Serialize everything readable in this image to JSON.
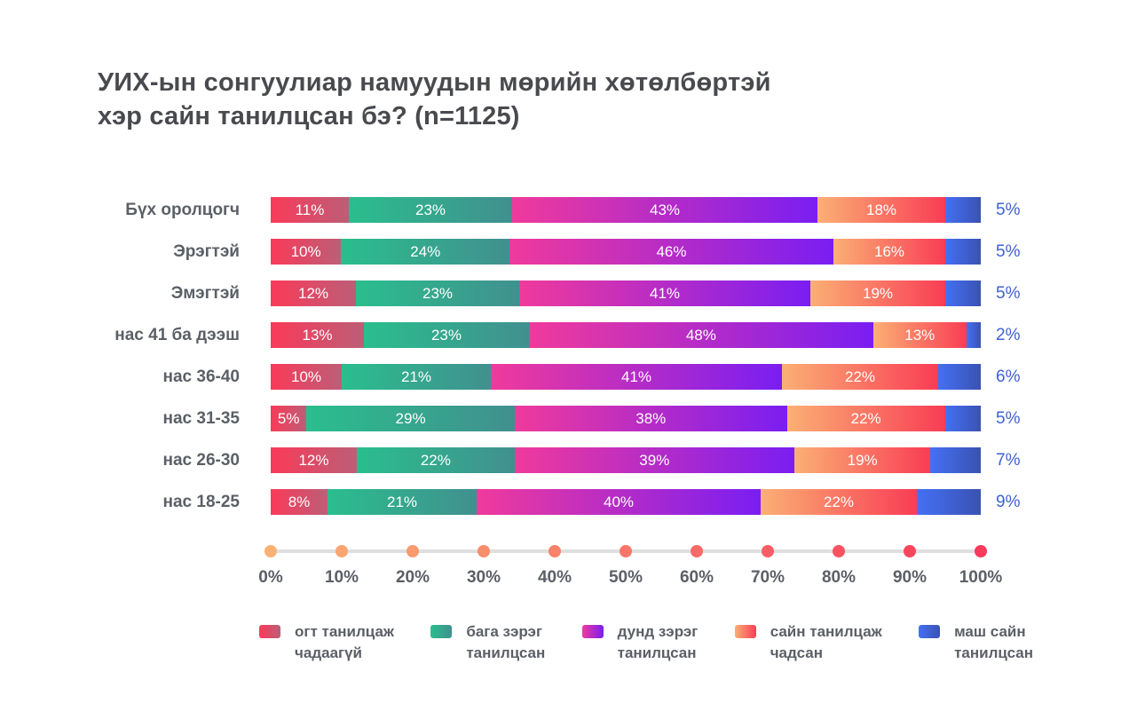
{
  "title": {
    "line1": "УИХ-ын сонгуулиар намуудын мөрийн хөтөлбөртэй",
    "line2": "хэр сайн танилцсан бэ? (n=1125)"
  },
  "colors": {
    "background": "#ffffff",
    "title_text": "#494a4e",
    "row_label_text": "#5b5f66",
    "segment_label_text": "#ffffff",
    "end_label_text": "#3e62d2",
    "axis_track": "#dfdfdf",
    "axis_label_text": "#5b5f66",
    "axis_dot_start": "#fbb173",
    "axis_dot_end": "#f93a5d"
  },
  "chart_data": {
    "type": "bar",
    "stacked": true,
    "orientation": "horizontal",
    "grid": false,
    "legend_position": "bottom",
    "xlim": [
      0,
      100
    ],
    "xticks": [
      "0%",
      "10%",
      "20%",
      "30%",
      "40%",
      "50%",
      "60%",
      "70%",
      "80%",
      "90%",
      "100%"
    ],
    "categories": [
      "Бүх оролцогч",
      "Эрэгтэй",
      "Эмэгтэй",
      "нас 41 ба дээш",
      "нас 36-40",
      "нас 31-35",
      "нас 26-30",
      "нас 18-25"
    ],
    "value_suffix": "%",
    "series": [
      {
        "name": "огт танилцаж чадаагүй",
        "label_lines": [
          "огт танилцаж",
          "чадаагүй"
        ],
        "gradient": [
          "#fa3a59",
          "#bc5e77"
        ],
        "values": [
          11,
          10,
          12,
          13,
          10,
          5,
          12,
          8
        ]
      },
      {
        "name": "бага зэрэг танилцсан",
        "label_lines": [
          "бага зэрэг",
          "танилцсан"
        ],
        "gradient": [
          "#2abe8d",
          "#41908f"
        ],
        "values": [
          23,
          24,
          23,
          23,
          21,
          29,
          22,
          21
        ]
      },
      {
        "name": "дунд зэрэг танилцсан",
        "label_lines": [
          "дунд зэрэг",
          "танилцсан"
        ],
        "gradient": [
          "#f03a9c",
          "#7a1ef2"
        ],
        "values": [
          43,
          46,
          41,
          48,
          41,
          38,
          39,
          40
        ]
      },
      {
        "name": "сайн танилцаж чадсан",
        "label_lines": [
          "сайн танилцаж",
          "чадсан"
        ],
        "gradient": [
          "#fbaf74",
          "#f93d55"
        ],
        "values": [
          18,
          16,
          19,
          13,
          22,
          22,
          19,
          22
        ]
      },
      {
        "name": "маш сайн танилцсан",
        "label_lines": [
          "маш сайн",
          "танилцсан"
        ],
        "gradient": [
          "#4470f4",
          "#3a52b2"
        ],
        "values": [
          5,
          5,
          5,
          2,
          6,
          5,
          7,
          9
        ]
      }
    ]
  }
}
